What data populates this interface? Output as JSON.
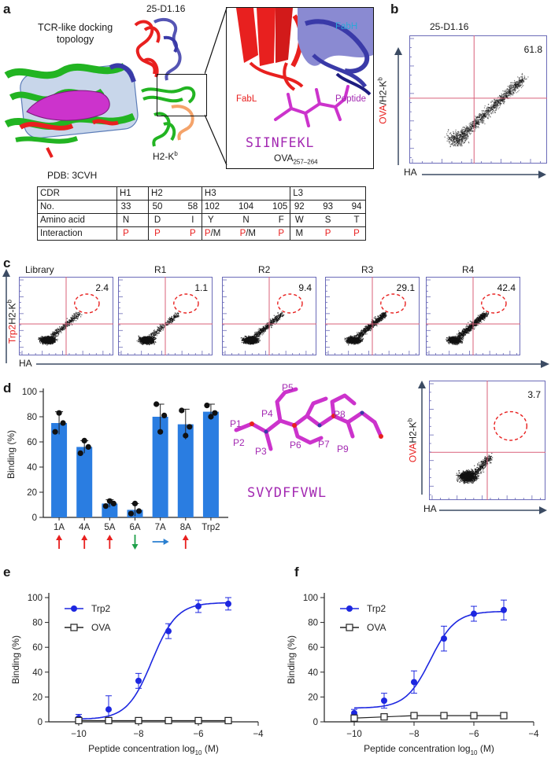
{
  "panel_labels": {
    "a": "a",
    "b": "b",
    "c": "c",
    "d": "d",
    "e": "e",
    "f": "f"
  },
  "panel_a": {
    "docking_label_line1": "TCR-like docking",
    "docking_label_line2": "topology",
    "pdb_label": "PDB: 3CVH",
    "antibody_title": "25-D1.16",
    "mhc_label": "H2-K",
    "mhc_superscript": "b",
    "fabh_label": "FabH",
    "fabl_label": "FabL",
    "peptide_label": "Peptide",
    "peptide_sequence": "SIINFEKL",
    "peptide_name": "OVA",
    "peptide_range": "257–264",
    "colors": {
      "green": "#22b422",
      "red": "#e8201f",
      "magenta": "#cc33cc",
      "blue": "#3a3aa8",
      "light_blue_box": "#cdd9ec",
      "fabh_text": "#2aa8d8"
    }
  },
  "cdr_table": {
    "row_labels": [
      "CDR",
      "No.",
      "Amino acid",
      "Interaction"
    ],
    "groups": [
      {
        "cdr": "H1",
        "no": [
          "33"
        ],
        "aa": [
          "N"
        ],
        "int": [
          "P"
        ]
      },
      {
        "cdr": "H2",
        "no": [
          "50",
          "58"
        ],
        "aa": [
          "D",
          "I"
        ],
        "int": [
          "P",
          "P"
        ]
      },
      {
        "cdr": "H3",
        "no": [
          "102",
          "104",
          "105"
        ],
        "aa": [
          "Y",
          "N",
          "F"
        ],
        "int": [
          "P/M",
          "P/M",
          "P"
        ]
      },
      {
        "cdr": "L3",
        "no": [
          "92",
          "93",
          "94"
        ],
        "aa": [
          "W",
          "S",
          "T"
        ],
        "int": [
          "M",
          "P",
          "P"
        ]
      }
    ]
  },
  "panel_b": {
    "title": "25-D1.16",
    "quadrant_value": "61.8",
    "ylabel_red": "OVA",
    "ylabel_rest": "/H2-K",
    "ylabel_sup": "b",
    "xlabel": "HA"
  },
  "panel_c": {
    "plots": [
      {
        "title": "Library",
        "value": "2.4",
        "density": 0.35
      },
      {
        "title": "R1",
        "value": "1.1",
        "density": 0.3
      },
      {
        "title": "R2",
        "value": "9.4",
        "density": 0.5
      },
      {
        "title": "R3",
        "value": "29.1",
        "density": 0.75
      },
      {
        "title": "R4",
        "value": "42.4",
        "density": 0.9
      }
    ],
    "ylabel_red": "Trp2",
    "ylabel_rest": "H2-K",
    "ylabel_sup": "b",
    "xlabel": "HA"
  },
  "panel_d_inset": {
    "value": "3.7",
    "ylabel_red": "OVA",
    "ylabel_rest": "H2-K",
    "ylabel_sup": "b",
    "xlabel": "HA"
  },
  "peptide_structure": {
    "positions": [
      "P1",
      "P2",
      "P3",
      "P4",
      "P5",
      "P6",
      "P7",
      "P8",
      "P9"
    ],
    "sequence": "SVYDFFVWL"
  },
  "chart_data": [
    {
      "id": "d",
      "type": "bar",
      "categories": [
        "1A",
        "4A",
        "5A",
        "6A",
        "7A",
        "8A",
        "Trp2"
      ],
      "values": [
        75,
        56,
        11,
        6,
        80,
        74,
        84
      ],
      "errors": [
        9,
        5,
        3,
        5,
        10,
        12,
        6
      ],
      "points": [
        [
          68,
          83,
          75
        ],
        [
          51,
          61,
          56
        ],
        [
          9,
          13,
          11
        ],
        [
          3,
          11,
          5
        ],
        [
          90,
          68,
          81
        ],
        [
          85,
          65,
          72
        ],
        [
          89,
          80,
          83
        ]
      ],
      "ylabel": "Binding (%)",
      "ylim": [
        0,
        100
      ],
      "yticks": [
        0,
        20,
        40,
        60,
        80,
        100
      ],
      "arrows": [
        "up",
        "up",
        "up",
        "down",
        "right",
        "up",
        ""
      ],
      "arrow_colors": {
        "up": "#e8201f",
        "down": "#1ea04a",
        "right": "#2a7fd0"
      },
      "bar_color": "#2a7de1"
    },
    {
      "id": "e",
      "type": "line",
      "xlabel": "Peptide concentration log",
      "xlabel_sub": "10",
      "xlabel_unit": " (M)",
      "ylabel": "Binding (%)",
      "xlim": [
        -11,
        -4
      ],
      "ylim": [
        0,
        100
      ],
      "xticks": [
        -10,
        -8,
        -6,
        -4
      ],
      "yticks": [
        0,
        20,
        40,
        60,
        80,
        100
      ],
      "series": [
        {
          "name": "Trp2",
          "color": "#1d27e0",
          "marker": "circle",
          "x": [
            -10,
            -9,
            -8,
            -7,
            -6,
            -5
          ],
          "y": [
            3,
            10,
            33,
            73,
            93,
            95
          ],
          "err": [
            3,
            11,
            6,
            6,
            5,
            5
          ],
          "fit": {
            "bottom": 2,
            "top": 96,
            "ec50": -7.55,
            "hill": 1.05
          }
        },
        {
          "name": "OVA",
          "color": "#222222",
          "marker": "square",
          "x": [
            -10,
            -9,
            -8,
            -7,
            -6,
            -5
          ],
          "y": [
            1,
            1,
            1,
            1,
            1,
            1
          ],
          "err": [
            0.5,
            0.5,
            0.5,
            0.5,
            0.5,
            0.5
          ]
        }
      ]
    },
    {
      "id": "f",
      "type": "line",
      "xlabel": "Peptide concentration log",
      "xlabel_sub": "10",
      "xlabel_unit": " (M)",
      "ylabel": "Binding (%)",
      "xlim": [
        -11,
        -4
      ],
      "ylim": [
        0,
        100
      ],
      "xticks": [
        -10,
        -8,
        -6,
        -4
      ],
      "yticks": [
        0,
        20,
        40,
        60,
        80,
        100
      ],
      "series": [
        {
          "name": "Trp2",
          "color": "#1d27e0",
          "marker": "circle",
          "x": [
            -10,
            -9,
            -8,
            -7,
            -6,
            -5
          ],
          "y": [
            7,
            17,
            32,
            67,
            87,
            90
          ],
          "err": [
            3,
            6,
            9,
            10,
            6,
            8
          ],
          "fit": {
            "bottom": 11,
            "top": 89,
            "ec50": -7.45,
            "hill": 1.05
          }
        },
        {
          "name": "OVA",
          "color": "#222222",
          "marker": "square",
          "x": [
            -10,
            -9,
            -8,
            -7,
            -6,
            -5
          ],
          "y": [
            3,
            4,
            5,
            5,
            5,
            5
          ],
          "err": [
            1,
            1,
            2,
            2,
            2,
            2
          ]
        }
      ]
    }
  ]
}
